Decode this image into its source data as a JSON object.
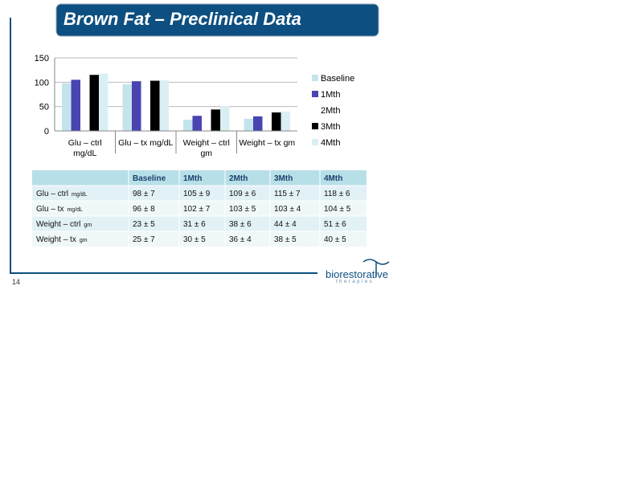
{
  "title": "Brown Fat – Preclinical Data",
  "chart_data": {
    "type": "bar",
    "categories": [
      "Glu – ctrl mg/dL",
      "Glu – tx mg/dL",
      "Weight – ctrl gm",
      "Weight – tx gm"
    ],
    "series": [
      {
        "name": "Baseline",
        "color": "#c4e4ec",
        "values": [
          98,
          96,
          23,
          25
        ]
      },
      {
        "name": "1Mth",
        "color": "#4a44b2",
        "values": [
          105,
          102,
          31,
          30
        ]
      },
      {
        "name": "2Mth",
        "color": "#ffffff",
        "values": [
          109,
          103,
          38,
          36
        ]
      },
      {
        "name": "3Mth",
        "color": "#000000",
        "values": [
          115,
          103,
          44,
          38
        ]
      },
      {
        "name": "4Mth",
        "color": "#daeff4",
        "values": [
          118,
          104,
          51,
          40
        ]
      }
    ],
    "ylim": [
      0,
      150
    ],
    "yticks": [
      0,
      50,
      100,
      150
    ],
    "grid": true,
    "legend": "right"
  },
  "table": {
    "columns": [
      "Baseline",
      "1Mth",
      "2Mth",
      "3Mth",
      "4Mth"
    ],
    "rows": [
      {
        "label": "Glu – ctrl",
        "unit": "mg/dL",
        "cells": [
          "98 ± 7",
          "105 ± 9",
          "109 ± 6",
          "115 ± 7",
          "118 ± 6"
        ]
      },
      {
        "label": "Glu – tx",
        "unit": "mg/dL",
        "cells": [
          "96 ± 8",
          "102 ± 7",
          "103 ± 5",
          "103 ± 4",
          "104 ± 5"
        ]
      },
      {
        "label": "Weight – ctrl",
        "unit": "gm",
        "cells": [
          "23 ± 5",
          "31 ± 6",
          "38 ± 6",
          "44 ± 4",
          "51 ± 6"
        ]
      },
      {
        "label": "Weight – tx",
        "unit": "gm",
        "cells": [
          "25 ± 7",
          "30 ± 5",
          "36 ± 4",
          "38 ± 5",
          "40 ± 5"
        ]
      }
    ]
  },
  "page_number": "14",
  "logo": {
    "name": "biorestorative",
    "tagline": "therapies"
  }
}
